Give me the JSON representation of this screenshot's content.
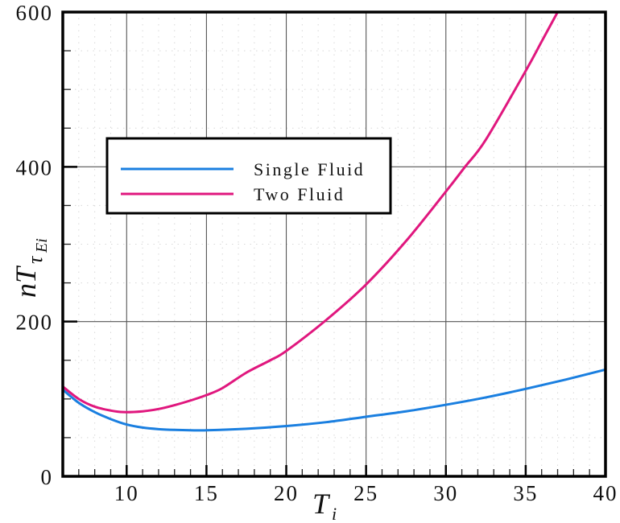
{
  "chart_data": {
    "type": "line",
    "title": "",
    "xlabel": "T_i",
    "ylabel": "nTτ_Ei",
    "xlim": [
      6,
      40
    ],
    "ylim": [
      0,
      600
    ],
    "x_major_ticks": [
      10,
      15,
      20,
      25,
      30,
      35,
      40
    ],
    "x_minor_step": 1,
    "y_major_ticks": [
      0,
      200,
      400,
      600
    ],
    "y_minor_step": 50,
    "grid": true,
    "legend_position": "upper-left-inset",
    "series": [
      {
        "name": "Single Fluid",
        "color": "#1a7fe0",
        "x": [
          6,
          7,
          8,
          9,
          10,
          11,
          12,
          13,
          14,
          15,
          17.5,
          20,
          22.5,
          25,
          27.5,
          30,
          32.5,
          35,
          37.5,
          40
        ],
        "y": [
          112,
          95,
          83,
          74,
          67,
          63,
          61,
          60,
          59.5,
          59.5,
          61.5,
          65,
          70,
          77,
          84,
          92.5,
          102,
          113,
          125,
          138
        ]
      },
      {
        "name": "Two Fluid",
        "color": "#e0177e",
        "x": [
          6,
          7,
          8,
          9,
          9.8,
          11,
          12,
          13,
          14,
          15,
          16,
          17.5,
          19,
          20,
          22.5,
          25,
          27.5,
          30,
          31.2,
          32.5,
          35,
          36,
          37
        ],
        "y": [
          116,
          100,
          90,
          85,
          83,
          84,
          87,
          92,
          98,
          105,
          114,
          134,
          150,
          162,
          202,
          248,
          304,
          368,
          400,
          435,
          524,
          562,
          600
        ]
      }
    ]
  },
  "axes": {
    "x_tick_labels": [
      "10",
      "15",
      "20",
      "25",
      "30",
      "35",
      "40"
    ],
    "y_tick_labels": [
      "0",
      "200",
      "400",
      "600"
    ],
    "x_title_main": "T",
    "x_title_sub": "i",
    "y_title_main": "nT",
    "y_title_sub1": "τ",
    "y_title_sub2": "Ei"
  },
  "legend": {
    "items": [
      {
        "label": "Single Fluid",
        "color": "#1a7fe0"
      },
      {
        "label": "Two Fluid",
        "color": "#e0177e"
      }
    ]
  }
}
